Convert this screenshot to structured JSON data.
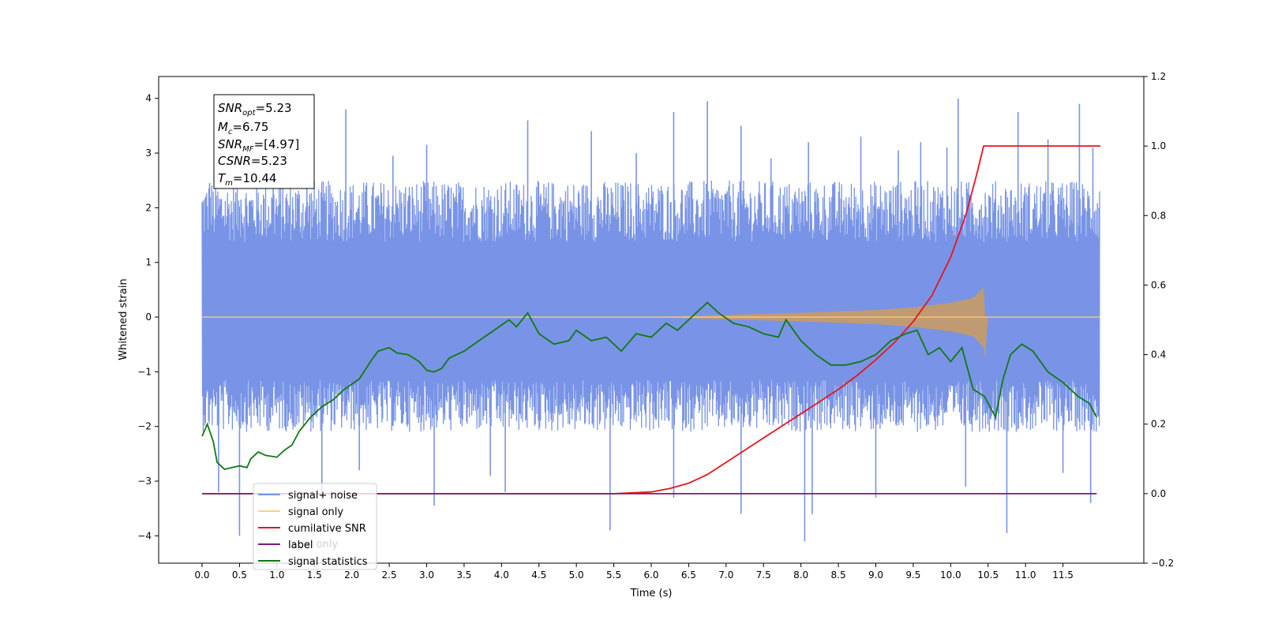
{
  "chart_data": {
    "type": "line",
    "xlabel": "Time (s)",
    "ylabel": "Whitened strain",
    "xlim": [
      -0.58,
      12.58
    ],
    "ylim": [
      -4.5,
      4.4
    ],
    "y2lim": [
      -0.2,
      1.2
    ],
    "x_ticks": [
      "0.0",
      "0.5",
      "1.0",
      "1.5",
      "2.0",
      "2.5",
      "3.0",
      "3.5",
      "4.0",
      "4.5",
      "5.0",
      "5.5",
      "6.0",
      "6.5",
      "7.0",
      "7.5",
      "8.0",
      "8.5",
      "9.0",
      "9.5",
      "10.0",
      "10.5",
      "11.0",
      "11.5"
    ],
    "y_ticks": [
      "4",
      "3",
      "2",
      "1",
      "0",
      "−1",
      "−2",
      "−3",
      "−4"
    ],
    "y2_ticks": [
      "1.2",
      "1.0",
      "0.8",
      "0.6",
      "0.4",
      "0.2",
      "0.0",
      "−0.2"
    ],
    "info_box": {
      "snr_opt_base": "SNR",
      "snr_opt_sub": "opt",
      "snr_opt_val": "=5.23",
      "mc_base": "M",
      "mc_sub": "c",
      "mc_val": "=6.75",
      "snr_mf_base": "SNR",
      "snr_mf_sub": "MF",
      "snr_mf_val": "=[4.97]",
      "csnr_base": "CSNR",
      "csnr_val": "=5.23",
      "tm_base": "T",
      "tm_sub": "m",
      "tm_val": "=10.44"
    },
    "legend": {
      "position": "lower-left",
      "entries": [
        {
          "label": "signal+ noise",
          "color": "#7994e6"
        },
        {
          "label": "signal only",
          "color": "#ffcf85"
        },
        {
          "label": "cumilative SNR",
          "color": "#e8141c"
        },
        {
          "label": "label",
          "color": "#7b1a7b"
        },
        {
          "label": "signal statistics",
          "color": "#127812"
        }
      ],
      "hidden_label": "label only"
    },
    "series": [
      {
        "name": "signal+ noise",
        "axis": "left",
        "color": "#7994e6",
        "x_range": [
          0.0,
          11.99
        ],
        "upper_envelope_typical": 2.5,
        "lower_envelope_typical": -2.1,
        "spike_peaks": [
          [
            0.1,
            2.45
          ],
          [
            0.52,
            2.15
          ],
          [
            0.95,
            2.75
          ],
          [
            1.4,
            3.0
          ],
          [
            1.92,
            3.8
          ],
          [
            2.55,
            2.95
          ],
          [
            3.0,
            3.15
          ],
          [
            4.35,
            3.6
          ],
          [
            5.2,
            3.4
          ],
          [
            5.8,
            3.0
          ],
          [
            6.3,
            3.75
          ],
          [
            6.75,
            3.95
          ],
          [
            7.2,
            3.5
          ],
          [
            7.6,
            2.9
          ],
          [
            8.1,
            3.2
          ],
          [
            8.8,
            3.3
          ],
          [
            9.3,
            3.05
          ],
          [
            9.6,
            3.2
          ],
          [
            9.95,
            3.1
          ],
          [
            10.1,
            4.0
          ],
          [
            10.9,
            3.75
          ],
          [
            11.3,
            3.25
          ],
          [
            11.72,
            3.9
          ],
          [
            11.9,
            3.1
          ]
        ],
        "spike_troughs": [
          [
            0.22,
            -3.2
          ],
          [
            0.5,
            -4.0
          ],
          [
            1.6,
            -3.3
          ],
          [
            2.1,
            -2.8
          ],
          [
            3.1,
            -3.45
          ],
          [
            3.85,
            -2.9
          ],
          [
            4.05,
            -3.2
          ],
          [
            5.45,
            -3.9
          ],
          [
            6.3,
            -3.3
          ],
          [
            7.2,
            -3.6
          ],
          [
            8.05,
            -4.1
          ],
          [
            8.15,
            -3.6
          ],
          [
            9.0,
            -3.3
          ],
          [
            10.2,
            -3.1
          ],
          [
            10.75,
            -3.95
          ],
          [
            11.5,
            -2.85
          ],
          [
            11.87,
            -3.4
          ]
        ]
      },
      {
        "name": "signal only",
        "axis": "left",
        "color": "#ffcf85",
        "note_values": [
          [
            0.0,
            0.0
          ],
          [
            6.0,
            0.0
          ],
          [
            7.0,
            0.04
          ],
          [
            8.0,
            0.08
          ],
          [
            9.0,
            0.13
          ],
          [
            9.5,
            0.18
          ],
          [
            10.0,
            0.26
          ],
          [
            10.3,
            0.35
          ],
          [
            10.44,
            0.55
          ],
          [
            10.46,
            -0.75
          ],
          [
            10.5,
            0.0
          ],
          [
            12.0,
            0.0
          ]
        ]
      },
      {
        "name": "cumilative SNR",
        "axis": "right",
        "color": "#e8141c",
        "x": [
          0.0,
          5.5,
          6.0,
          6.25,
          6.5,
          6.75,
          7.0,
          7.25,
          7.5,
          7.75,
          8.0,
          8.25,
          8.5,
          8.75,
          9.0,
          9.25,
          9.5,
          9.75,
          10.0,
          10.2,
          10.35,
          10.44,
          12.0
        ],
        "y": [
          0.0,
          0.0,
          0.005,
          0.015,
          0.03,
          0.055,
          0.09,
          0.125,
          0.16,
          0.195,
          0.23,
          0.265,
          0.3,
          0.34,
          0.385,
          0.435,
          0.495,
          0.57,
          0.68,
          0.8,
          0.92,
          1.0,
          1.0
        ]
      },
      {
        "name": "label",
        "axis": "right",
        "color": "#7b1a7b",
        "x": [
          0.0,
          11.95
        ],
        "y": [
          0.0,
          0.0
        ]
      },
      {
        "name": "signal statistics",
        "axis": "right",
        "color": "#127812",
        "x": [
          0.0,
          0.07,
          0.15,
          0.2,
          0.3,
          0.4,
          0.5,
          0.6,
          0.65,
          0.75,
          0.85,
          1.0,
          1.1,
          1.2,
          1.3,
          1.45,
          1.6,
          1.75,
          1.9,
          2.1,
          2.25,
          2.35,
          2.5,
          2.6,
          2.75,
          2.9,
          3.0,
          3.1,
          3.2,
          3.3,
          3.5,
          3.7,
          3.9,
          4.1,
          4.2,
          4.35,
          4.5,
          4.7,
          4.9,
          5.0,
          5.2,
          5.4,
          5.6,
          5.8,
          6.0,
          6.2,
          6.35,
          6.5,
          6.6,
          6.75,
          6.9,
          7.1,
          7.3,
          7.5,
          7.7,
          7.8,
          8.0,
          8.2,
          8.4,
          8.6,
          8.8,
          9.0,
          9.2,
          9.4,
          9.55,
          9.7,
          9.85,
          10.0,
          10.15,
          10.3,
          10.45,
          10.6,
          10.7,
          10.8,
          10.95,
          11.1,
          11.3,
          11.5,
          11.7,
          11.85,
          11.95
        ],
        "y": [
          0.165,
          0.2,
          0.15,
          0.09,
          0.07,
          0.075,
          0.08,
          0.075,
          0.1,
          0.12,
          0.11,
          0.105,
          0.125,
          0.14,
          0.18,
          0.22,
          0.25,
          0.27,
          0.3,
          0.33,
          0.38,
          0.41,
          0.42,
          0.405,
          0.4,
          0.38,
          0.355,
          0.35,
          0.36,
          0.39,
          0.41,
          0.44,
          0.47,
          0.5,
          0.48,
          0.52,
          0.46,
          0.43,
          0.44,
          0.47,
          0.44,
          0.45,
          0.41,
          0.46,
          0.45,
          0.49,
          0.47,
          0.5,
          0.52,
          0.55,
          0.52,
          0.49,
          0.48,
          0.46,
          0.45,
          0.5,
          0.44,
          0.4,
          0.37,
          0.37,
          0.38,
          0.4,
          0.44,
          0.46,
          0.47,
          0.4,
          0.42,
          0.38,
          0.42,
          0.3,
          0.28,
          0.22,
          0.33,
          0.4,
          0.43,
          0.41,
          0.35,
          0.32,
          0.28,
          0.26,
          0.22
        ]
      }
    ]
  }
}
